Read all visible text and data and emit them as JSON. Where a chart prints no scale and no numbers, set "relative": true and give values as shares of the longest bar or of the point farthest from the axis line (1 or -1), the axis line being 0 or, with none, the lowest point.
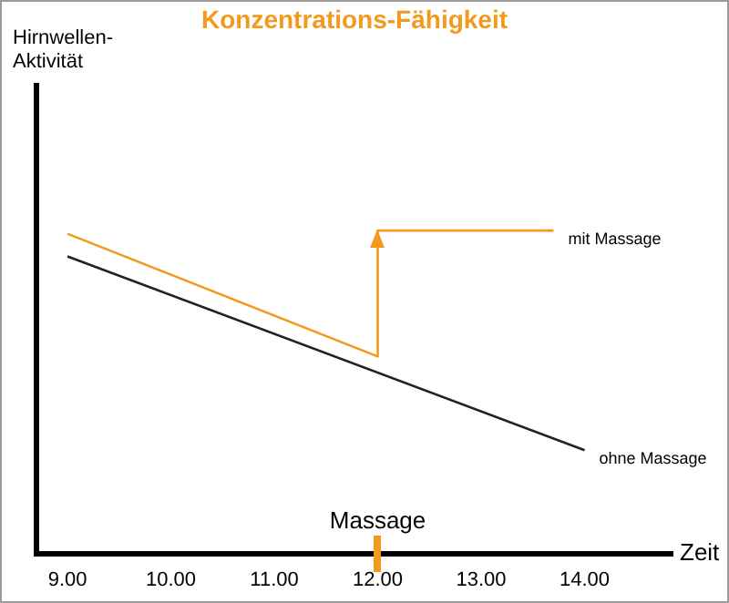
{
  "chart_data": {
    "type": "line",
    "title": "Konzentrations-Fähigkeit",
    "xlabel": "Zeit",
    "relative": true,
    "tick_labels": "x",
    "legend": false,
    "grid": false,
    "marker": "none",
    "line_style": "solid",
    "xlim": [
      8.7,
      14.85
    ],
    "xticks": [
      {
        "value": 9,
        "label": "9.00"
      },
      {
        "value": 10,
        "label": "10.00"
      },
      {
        "value": 11,
        "label": "11.00"
      },
      {
        "value": 12,
        "label": "12.00"
      },
      {
        "value": 13,
        "label": "13.00"
      },
      {
        "value": 14,
        "label": "14.00"
      }
    ],
    "series": [
      {
        "name": "mit Massage",
        "color": "#f39a1e",
        "x": [
          9,
          12,
          12,
          13.7
        ],
        "values": [
          0.99,
          0.61,
          1,
          1
        ]
      },
      {
        "name": "ohne Massage",
        "color": "#222222",
        "x": [
          9,
          14
        ],
        "values": [
          0.92,
          0.32
        ]
      }
    ],
    "annotations": [
      "Hirnwellen-Aktivität",
      "Massage"
    ]
  }
}
